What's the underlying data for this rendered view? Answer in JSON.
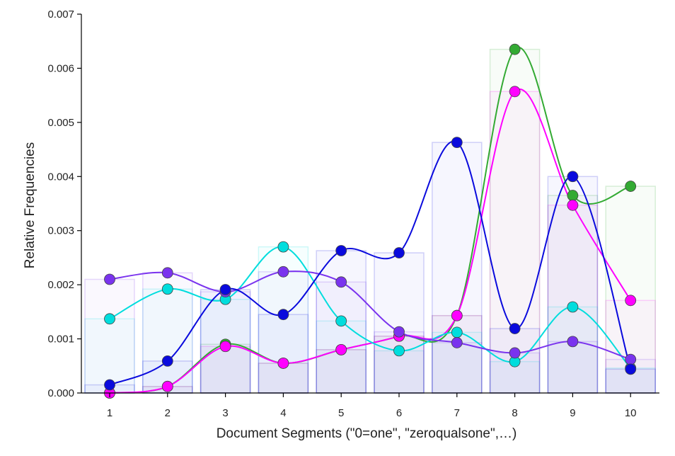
{
  "chart_data": {
    "type": "line",
    "title": "",
    "xlabel": "Document Segments (\"0=one\", \"zeroqualsone\",…)",
    "ylabel": "Relative Frequencies",
    "categories": [
      "1",
      "2",
      "3",
      "4",
      "5",
      "6",
      "7",
      "8",
      "9",
      "10"
    ],
    "ylim": [
      0,
      0.007
    ],
    "yticks": [
      "0.000",
      "0.001",
      "0.002",
      "0.003",
      "0.004",
      "0.005",
      "0.006",
      "0.007"
    ],
    "grid": false,
    "legend": "none",
    "series": [
      {
        "color": "#33aa33",
        "values": [
          0.0,
          0.00012,
          0.0009,
          0.00055,
          0.0008,
          0.00105,
          0.00143,
          0.00635,
          0.00365,
          0.00382
        ]
      },
      {
        "color": "#ff00ff",
        "values": [
          0.0,
          0.00012,
          0.00086,
          0.00055,
          0.0008,
          0.00105,
          0.00143,
          0.00557,
          0.00347,
          0.00171
        ]
      },
      {
        "color": "#00dddd",
        "values": [
          0.00137,
          0.00192,
          0.00173,
          0.0027,
          0.00133,
          0.00078,
          0.00112,
          0.00058,
          0.00159,
          0.00046
        ]
      },
      {
        "color": "#7a33ee",
        "values": [
          0.0021,
          0.00222,
          0.00187,
          0.00224,
          0.00205,
          0.00113,
          0.00093,
          0.00074,
          0.00095,
          0.00062
        ]
      },
      {
        "color": "#0a0add",
        "values": [
          0.00015,
          0.00059,
          0.00191,
          0.00145,
          0.00263,
          0.00259,
          0.00463,
          0.00119,
          0.004,
          0.00044
        ]
      }
    ]
  }
}
